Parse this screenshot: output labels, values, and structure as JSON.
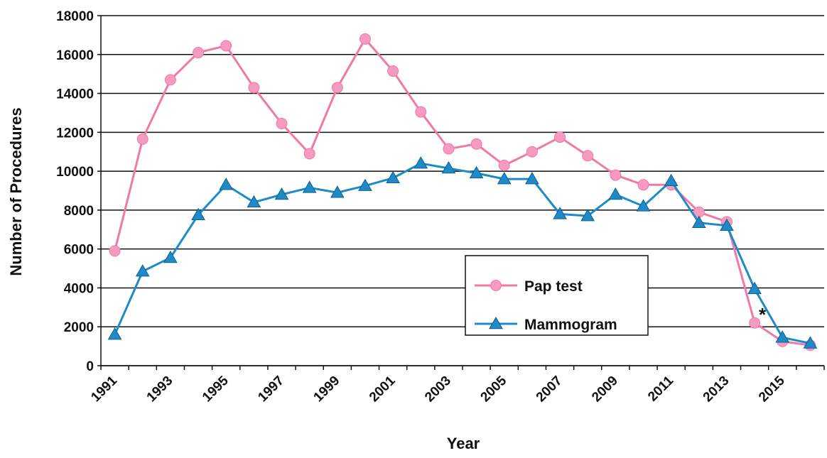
{
  "chart_data": {
    "type": "line",
    "categories": [
      "1991",
      null,
      "1993",
      null,
      "1995",
      null,
      "1997",
      null,
      "1999",
      null,
      "2001",
      null,
      "2003",
      null,
      "2005",
      null,
      "2007",
      null,
      "2009",
      null,
      "2011",
      null,
      "2013",
      null,
      "2015",
      null
    ],
    "series": [
      {
        "name": "Pap test",
        "color": "#f07aa6",
        "marker": "circle",
        "values": [
          5900,
          11650,
          14700,
          16100,
          16450,
          14300,
          12450,
          10900,
          14300,
          16800,
          15150,
          13050,
          11150,
          11400,
          10300,
          11000,
          11750,
          10800,
          9800,
          9300,
          9300,
          7900,
          7400,
          2200,
          1250,
          1050
        ]
      },
      {
        "name": "Mammogram",
        "color": "#1e8bc8",
        "marker": "triangle",
        "values": [
          1600,
          4850,
          5550,
          7750,
          9300,
          8400,
          8800,
          9150,
          8900,
          9250,
          9650,
          10400,
          10150,
          9900,
          9600,
          9600,
          7800,
          7700,
          8800,
          8200,
          9500,
          7350,
          7200,
          3950,
          1450,
          1150
        ]
      }
    ],
    "xlabel": "Year",
    "ylabel": "Number of Procedures",
    "ylim": [
      0,
      18000
    ],
    "yticks": [
      0,
      2000,
      4000,
      6000,
      8000,
      10000,
      12000,
      14000,
      16000,
      18000
    ],
    "grid": true,
    "annotation": "*"
  }
}
